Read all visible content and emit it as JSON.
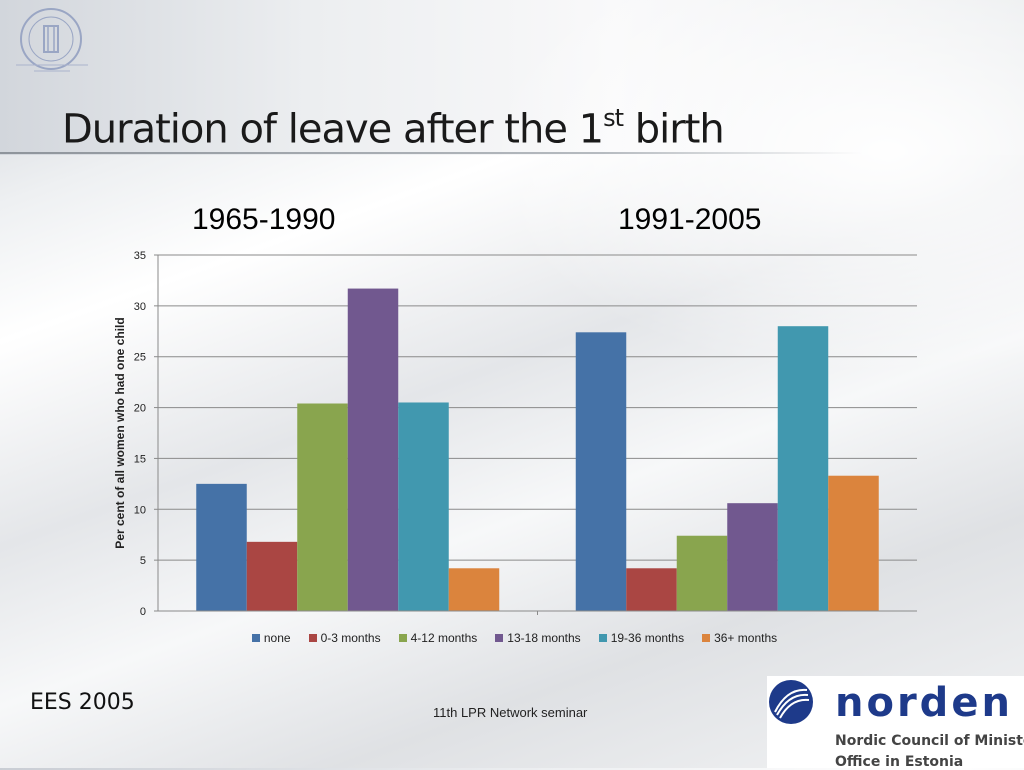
{
  "slide": {
    "title_main": "Duration of leave after the 1",
    "title_sup": "st",
    "title_end": " birth",
    "period_left": "1965-1990",
    "period_right": "1991-2005",
    "footer_left": "EES 2005",
    "footer_center": "11th LPR Network seminar"
  },
  "logo": {
    "word": "norden",
    "line1": "Nordic Council of Ministers´",
    "line2": "Office in Estonia",
    "color": "#1e3a8a"
  },
  "chart_data": {
    "type": "bar",
    "ylabel": "Per cent of all women who had one child",
    "ylim": [
      0,
      35
    ],
    "yticks": [
      0,
      5,
      10,
      15,
      20,
      25,
      30,
      35
    ],
    "grid": true,
    "legend_position": "bottom",
    "groups": [
      "1965-1990",
      "1991-2005"
    ],
    "series": [
      {
        "name": "none",
        "color": "#4572a7",
        "values": [
          12.5,
          27.4
        ]
      },
      {
        "name": "0-3 months",
        "color": "#aa4643",
        "values": [
          6.8,
          4.2
        ]
      },
      {
        "name": "4-12 months",
        "color": "#89a54e",
        "values": [
          20.4,
          7.4
        ]
      },
      {
        "name": "13-18 months",
        "color": "#71588f",
        "values": [
          31.7,
          10.6
        ]
      },
      {
        "name": "19-36 months",
        "color": "#4198af",
        "values": [
          20.5,
          28.0
        ]
      },
      {
        "name": "36+ months",
        "color": "#db843d",
        "values": [
          4.2,
          13.3
        ]
      }
    ]
  }
}
